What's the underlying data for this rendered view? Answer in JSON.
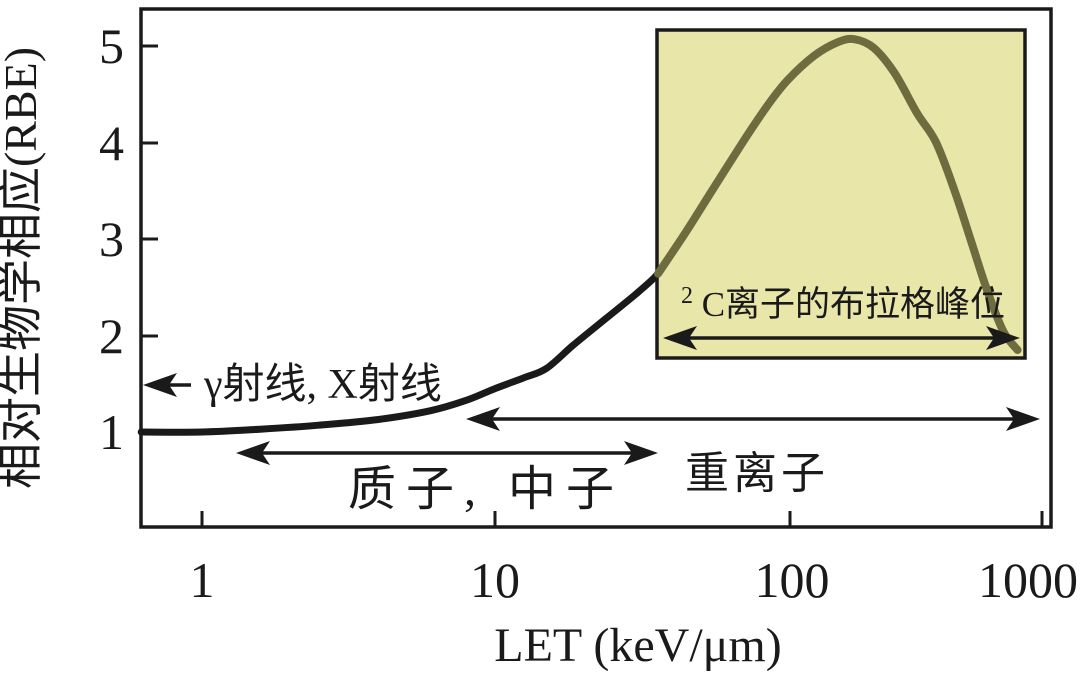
{
  "figure": {
    "background": "#ffffff"
  },
  "colors": {
    "axis": "#1a1a1a",
    "text": "#1a1a1a",
    "curve": "#1a1a1a",
    "inset_curve": "#6e6c3e",
    "inset_bg": "#e9e6aa",
    "inset_border": "#1a1a1a",
    "arrow": "#1a1a1a"
  },
  "chart_data": {
    "type": "line",
    "xlabel": "LET (keV/μm)",
    "ylabel": "相对生物学相应(RBE)",
    "x_scale": "log",
    "x_ticks": [
      1,
      10,
      100,
      1000
    ],
    "x_tick_labels": [
      "1",
      "10",
      "100",
      "1000"
    ],
    "y_ticks": [
      1,
      2,
      3,
      4,
      5
    ],
    "y_tick_labels_top_to_bottom": [
      "5",
      "4",
      "3",
      "2",
      "1"
    ],
    "x_range": [
      0.62,
      1100
    ],
    "y_range": [
      0.0,
      5.4
    ],
    "grid": false,
    "legend": false,
    "series": [
      {
        "name": "rbe_vs_let_main",
        "color_key": "curve",
        "points": [
          [
            0.62,
            1.0
          ],
          [
            1,
            1.0
          ],
          [
            1.6,
            1.03
          ],
          [
            2.5,
            1.07
          ],
          [
            4,
            1.13
          ],
          [
            6,
            1.22
          ],
          [
            8,
            1.33
          ],
          [
            10,
            1.45
          ],
          [
            12.5,
            1.56
          ],
          [
            15,
            1.66
          ],
          [
            18.5,
            1.9
          ],
          [
            24,
            2.18
          ],
          [
            30,
            2.42
          ],
          [
            35,
            2.6
          ],
          [
            38,
            2.74
          ]
        ]
      },
      {
        "name": "rbe_vs_let_bragg_peak_region",
        "color_key": "inset_curve",
        "points": [
          [
            36,
            2.64
          ],
          [
            45,
            3.08
          ],
          [
            55,
            3.5
          ],
          [
            70,
            4.0
          ],
          [
            85,
            4.38
          ],
          [
            100,
            4.65
          ],
          [
            125,
            4.9
          ],
          [
            155,
            5.04
          ],
          [
            180,
            5.07
          ],
          [
            215,
            4.98
          ],
          [
            260,
            4.72
          ],
          [
            320,
            4.3
          ],
          [
            380,
            4.0
          ],
          [
            450,
            3.5
          ],
          [
            520,
            3.0
          ],
          [
            600,
            2.5
          ],
          [
            700,
            2.05
          ],
          [
            800,
            1.85
          ]
        ]
      }
    ],
    "annotations": {
      "gamma_xray": {
        "label": "γ射线, X射线",
        "arrow_direction": "left",
        "arrow_rbe": 1.49
      },
      "proton_neutron": {
        "label": "质子, 中子",
        "let_range": [
          1.3,
          36
        ],
        "arrow_rbe": 0.78
      },
      "heavy_ion": {
        "label": "重离子",
        "let_range": [
          8,
          1000
        ],
        "arrow_rbe": 1.14
      },
      "bragg_inset": {
        "label_superscript": "2",
        "label_text": "C离子的布拉格峰位",
        "let_range": [
          38,
          800
        ]
      }
    }
  }
}
